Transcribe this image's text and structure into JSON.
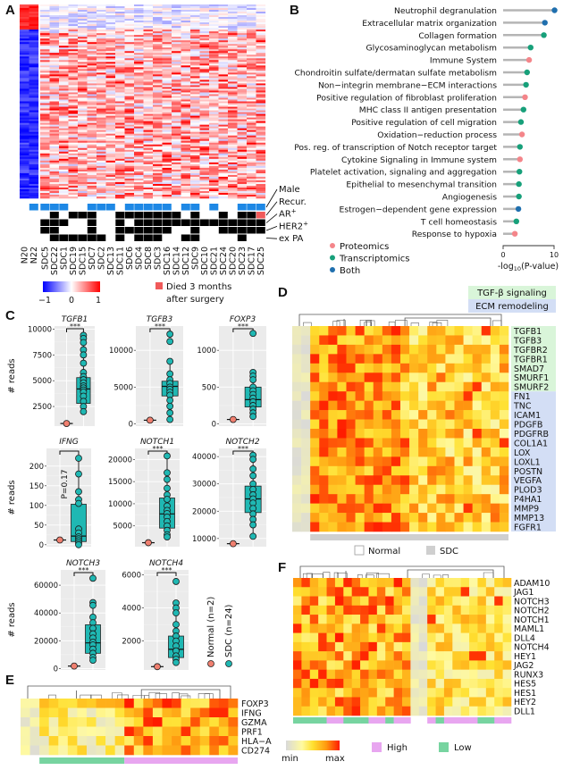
{
  "panel_labels": [
    "A",
    "B",
    "C",
    "D",
    "E",
    "F"
  ],
  "colors": {
    "blue": "#1e88e5",
    "proteomics": "#f4858a",
    "transcriptomics": "#17a07a",
    "both": "#1f6fae",
    "box": "#1fb8b3",
    "normal_point": "#f08070",
    "tgf_band": "#d9f5d9",
    "ecm_band": "#d3def5",
    "high": "#e8a6f0",
    "low": "#77d4a0"
  },
  "panelA": {
    "samples": [
      "N20",
      "N22",
      "SDC5",
      "SDC22",
      "SDC1",
      "SDC19",
      "SDC15",
      "SDC7",
      "SDC2",
      "SDC13",
      "SDC11",
      "SDC6",
      "SDC4",
      "SDC8",
      "SDC3",
      "SDC16",
      "SDC14",
      "SDC12",
      "SDC9",
      "SDC10",
      "SDC21",
      "SDC24",
      "SDC20",
      "SDC23",
      "SDC17",
      "SDC25"
    ],
    "tracks": [
      {
        "label": "Male",
        "sup": "",
        "values": [
          0,
          1,
          1,
          1,
          1,
          0,
          0,
          1,
          1,
          1,
          0,
          1,
          1,
          1,
          1,
          1,
          0,
          1,
          1,
          0,
          1,
          0,
          0,
          1,
          1,
          1
        ]
      },
      {
        "label": "Recur.",
        "sup": "",
        "values": [
          0,
          0,
          0,
          1,
          0,
          1,
          1,
          1,
          0,
          0,
          1,
          1,
          1,
          1,
          1,
          1,
          1,
          0,
          1,
          0,
          0,
          1,
          0,
          1,
          1,
          2
        ]
      },
      {
        "label": "AR",
        "sup": "+",
        "values": [
          0,
          0,
          1,
          1,
          1,
          0,
          0,
          1,
          0,
          0,
          1,
          0,
          1,
          1,
          1,
          1,
          1,
          1,
          1,
          1,
          1,
          1,
          1,
          1,
          1,
          1
        ]
      },
      {
        "label": "HER2",
        "sup": "+",
        "values": [
          0,
          0,
          1,
          1,
          0,
          0,
          0,
          1,
          0,
          0,
          1,
          1,
          1,
          1,
          1,
          1,
          0,
          0,
          1,
          0,
          0,
          1,
          1,
          1,
          1,
          1
        ]
      },
      {
        "label": "ex PA",
        "sup": "",
        "values": [
          0,
          0,
          0,
          1,
          1,
          1,
          1,
          1,
          1,
          0,
          1,
          0,
          1,
          1,
          1,
          0,
          0,
          1,
          1,
          0,
          0,
          0,
          0,
          1,
          0,
          0
        ]
      }
    ],
    "colorbar_ticks": [
      "−1",
      "0",
      "1"
    ],
    "died_legend": [
      "Died 3 months",
      "after surgery"
    ]
  },
  "chart_data": [
    {
      "type": "lollipop",
      "panel": "B",
      "xlabel": "-log",
      "xlabel_sub": "10",
      "xlabel_tail": "(P-value)",
      "xlim": [
        0,
        10
      ],
      "xticks": [
        "0",
        "10"
      ],
      "legend": [
        {
          "name": "Proteomics",
          "key": "P"
        },
        {
          "name": "Transcriptomics",
          "key": "T"
        },
        {
          "name": "Both",
          "key": "B"
        }
      ],
      "items": [
        {
          "label": "Neutrophil degranulation",
          "value": 10.1,
          "source": "B"
        },
        {
          "label": "Extracellular matrix organization",
          "value": 8.2,
          "source": "B"
        },
        {
          "label": "Collagen formation",
          "value": 8.0,
          "source": "T"
        },
        {
          "label": "Glycosaminoglycan metabolism",
          "value": 5.4,
          "source": "T"
        },
        {
          "label": "Immune System",
          "value": 5.1,
          "source": "P"
        },
        {
          "label": "Chondroitin sulfate/dermatan sulfate metabolism",
          "value": 4.7,
          "source": "T"
        },
        {
          "label": "Non−integrin membrane−ECM interactions",
          "value": 4.5,
          "source": "T"
        },
        {
          "label": "Positive regulation of fibroblast proliferation",
          "value": 4.3,
          "source": "P"
        },
        {
          "label": "MHC class II antigen presentation",
          "value": 4.0,
          "source": "T"
        },
        {
          "label": "Positive regulation of cell migration",
          "value": 3.5,
          "source": "T"
        },
        {
          "label": "Oxidation−reduction process",
          "value": 3.7,
          "source": "P"
        },
        {
          "label": "Pos. reg. of transcription of Notch receptor target",
          "value": 3.3,
          "source": "T"
        },
        {
          "label": "Cytokine Signaling in Immune system",
          "value": 3.3,
          "source": "P"
        },
        {
          "label": "Platelet activation, signaling and aggregation",
          "value": 3.2,
          "source": "T"
        },
        {
          "label": "Epithelial to mesenchymal transition",
          "value": 3.1,
          "source": "T"
        },
        {
          "label": "Angiogenesis",
          "value": 3.1,
          "source": "T"
        },
        {
          "label": "Estrogen−dependent gene expression",
          "value": 3.0,
          "source": "B"
        },
        {
          "label": "T cell homeostasis",
          "value": 2.6,
          "source": "T"
        },
        {
          "label": "Response to hypoxia",
          "value": 2.3,
          "source": "P"
        }
      ]
    },
    {
      "type": "boxplot",
      "panel": "C",
      "ylabel": "# reads",
      "legend": [
        "Normal (n=2)",
        "SDC (n=24)"
      ],
      "genes": [
        {
          "gene": "TGFB1",
          "sig": "***",
          "ylim": [
            600,
            10300
          ],
          "yticks": [
            2500,
            5000,
            7500,
            10000
          ],
          "normal": 850,
          "box": [
            2000,
            2800,
            4200,
            5300,
            9400
          ],
          "points": [
            9400,
            9100,
            8700,
            8000,
            7500,
            6700,
            5800,
            5400,
            5100,
            4800,
            4500,
            4300,
            4100,
            3900,
            3500,
            3000,
            2500,
            2000
          ]
        },
        {
          "gene": "TGFB3",
          "sig": "***",
          "ylim": [
            -300,
            13300
          ],
          "yticks": [
            0,
            5000,
            10000
          ],
          "normal": 500,
          "box": [
            600,
            3800,
            5100,
            5800,
            8500
          ],
          "points": [
            12200,
            11200,
            8500,
            6800,
            6000,
            5500,
            5000,
            4700,
            4300,
            3900,
            3200,
            2400,
            1500,
            600
          ]
        },
        {
          "gene": "FOXP3",
          "sig": "***",
          "ylim": [
            -30,
            1330
          ],
          "yticks": [
            0,
            500,
            1000
          ],
          "normal": 60,
          "box": [
            100,
            230,
            330,
            500,
            700
          ],
          "points": [
            1230,
            700,
            650,
            600,
            500,
            450,
            400,
            350,
            300,
            250,
            200,
            150,
            100
          ]
        },
        {
          "gene": "IFNG",
          "sig": "P=0.17",
          "ylim": [
            -5,
            245
          ],
          "yticks": [
            0,
            50,
            100,
            150,
            200
          ],
          "normal": 12,
          "box": [
            0,
            8,
            22,
            103,
            220
          ],
          "points": [
            220,
            180,
            135,
            115,
            105,
            40,
            30,
            20,
            15,
            10,
            5,
            0
          ]
        },
        {
          "gene": "NOTCH1",
          "sig": "***",
          "ylim": [
            300,
            22500
          ],
          "yticks": [
            5000,
            10000,
            15000,
            20000
          ],
          "normal": 1200,
          "box": [
            2500,
            4500,
            7700,
            11300,
            20800
          ],
          "points": [
            20800,
            17000,
            15500,
            13500,
            12000,
            11000,
            9500,
            8500,
            7800,
            7000,
            6000,
            5000,
            4000,
            3000,
            2500
          ]
        },
        {
          "gene": "NOTCH2",
          "sig": "***",
          "ylim": [
            7000,
            43000
          ],
          "yticks": [
            10000,
            20000,
            30000,
            40000
          ],
          "normal": 8100,
          "box": [
            10800,
            19500,
            24500,
            29200,
            40500
          ],
          "points": [
            40500,
            39000,
            35500,
            33000,
            30000,
            28000,
            26000,
            24500,
            23000,
            21000,
            19000,
            17000,
            15000,
            10800
          ]
        },
        {
          "gene": "NOTCH3",
          "sig": "***",
          "ylim": [
            -1000,
            71000
          ],
          "yticks": [
            0,
            20000,
            40000,
            60000
          ],
          "normal": 1800,
          "box": [
            6000,
            11000,
            18500,
            31500,
            47500
          ],
          "points": [
            65000,
            47500,
            45500,
            37000,
            33000,
            29000,
            25000,
            22000,
            19000,
            17000,
            14000,
            11000,
            8000,
            6000
          ]
        },
        {
          "gene": "NOTCH4",
          "sig": "***",
          "ylim": [
            250,
            6300
          ],
          "yticks": [
            2000,
            4000,
            6000
          ],
          "normal": 450,
          "box": [
            700,
            1000,
            1500,
            2300,
            4300
          ],
          "points": [
            5600,
            4300,
            4000,
            3700,
            3000,
            2600,
            2300,
            2000,
            1700,
            1400,
            1100,
            900,
            700
          ]
        }
      ]
    },
    {
      "type": "heatmap",
      "panel": "D",
      "legend_groups": [
        "TGF-β signaling",
        "ECM remodeling"
      ],
      "sample_legend": [
        "Normal",
        "SDC"
      ],
      "tgf_genes": [
        "TGFB1",
        "TGFB3",
        "TGFBR2",
        "TGFBR1",
        "SMAD7",
        "SMURF1",
        "SMURF2"
      ],
      "ecm_genes": [
        "FN1",
        "TNC",
        "ICAM1",
        "PDGFB",
        "PDGFRB",
        "COL1A1",
        "LOX",
        "LOXL1",
        "POSTN",
        "VEGFA",
        "PLOD3",
        "P4HA1",
        "MMP9",
        "MMP13",
        "FGFR1"
      ]
    },
    {
      "type": "heatmap",
      "panel": "E",
      "genes": [
        "FOXP3",
        "IFNG",
        "GZMA",
        "PRF1",
        "HLA−A",
        "CD274"
      ]
    },
    {
      "type": "heatmap",
      "panel": "F",
      "genes": [
        "ADAM10",
        "JAG1",
        "NOTCH3",
        "NOTCH2",
        "NOTCH1",
        "MAML1",
        "DLL4",
        "NOTCH4",
        "HEY1",
        "JAG2",
        "RUNX3",
        "HES5",
        "HES1",
        "HEY2",
        "DLL1"
      ],
      "groups": [
        "L",
        "L",
        "L",
        "L",
        "H",
        "H",
        "L",
        "L",
        "L",
        "H",
        "H",
        "L",
        "H",
        "H",
        "",
        "",
        "H",
        "L",
        "H",
        "H",
        "H",
        "H",
        "L",
        "L",
        "H",
        "H"
      ],
      "scale_labels": [
        "min",
        "max"
      ],
      "group_legend": [
        "High",
        "Low"
      ]
    }
  ]
}
